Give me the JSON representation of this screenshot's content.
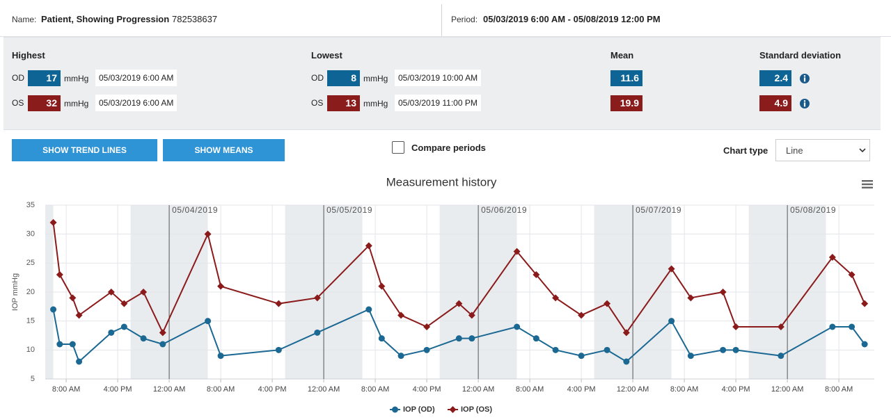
{
  "header": {
    "name_label": "Name:",
    "name": "Patient, Showing Progression",
    "patient_id": "782538637",
    "period_label": "Period:",
    "period": "05/03/2019 6:00 AM - 05/08/2019 12:00 PM"
  },
  "stats": {
    "columns": {
      "highest": "Highest",
      "lowest": "Lowest",
      "mean": "Mean",
      "sd": "Standard deviation"
    },
    "unit": "mmHg",
    "rows": [
      {
        "eye": "OD",
        "highest": 17,
        "highest_time": "05/03/2019 6:00 AM",
        "lowest": 8,
        "lowest_time": "05/03/2019 10:00 AM",
        "mean": 11.6,
        "sd": 2.4
      },
      {
        "eye": "OS",
        "highest": 32,
        "highest_time": "05/03/2019 6:00 AM",
        "lowest": 13,
        "lowest_time": "05/03/2019 11:00 PM",
        "mean": 19.9,
        "sd": 4.9
      }
    ]
  },
  "controls": {
    "trend_button": "SHOW TREND LINES",
    "means_button": "SHOW MEANS",
    "compare_label": "Compare periods",
    "chart_type_label": "Chart type",
    "chart_type": "Line"
  },
  "chart_data": {
    "type": "line",
    "title": "Measurement history",
    "y_label": "IOP mmHg",
    "x": [
      6,
      7,
      9,
      10,
      15,
      17,
      20,
      23,
      30,
      32,
      41,
      47,
      55,
      57,
      60,
      64,
      69,
      71,
      78,
      81,
      84,
      88,
      92,
      95,
      102,
      105,
      110,
      112,
      119,
      127,
      130,
      132
    ],
    "series": [
      {
        "name": "IOP (OD)",
        "color": "#1b6893",
        "marker": "circle",
        "values": [
          17,
          11,
          11,
          8,
          13,
          14,
          12,
          11,
          15,
          9,
          10,
          13,
          17,
          12,
          9,
          10,
          12,
          12,
          14,
          12,
          10,
          9,
          10,
          8,
          15,
          9,
          10,
          10,
          9,
          14,
          14,
          11
        ]
      },
      {
        "name": "IOP (OS)",
        "color": "#8b1a1a",
        "marker": "diamond",
        "values": [
          32,
          23,
          19,
          16,
          20,
          18,
          20,
          13,
          30,
          21,
          18,
          19,
          28,
          21,
          16,
          14,
          18,
          16,
          27,
          23,
          19,
          16,
          18,
          13,
          24,
          19,
          20,
          14,
          14,
          26,
          23,
          18
        ]
      }
    ],
    "xlim": [
      4.75,
      133.5
    ],
    "xticks": [
      {
        "value": 8,
        "label": "8:00 AM"
      },
      {
        "value": 16,
        "label": "4:00 PM"
      },
      {
        "value": 24,
        "label": "12:00 AM"
      },
      {
        "value": 32,
        "label": "8:00 AM"
      },
      {
        "value": 40,
        "label": "4:00 PM"
      },
      {
        "value": 48,
        "label": "12:00 AM"
      },
      {
        "value": 56,
        "label": "8:00 AM"
      },
      {
        "value": 64,
        "label": "4:00 PM"
      },
      {
        "value": 72,
        "label": "12:00 AM"
      },
      {
        "value": 80,
        "label": "8:00 AM"
      },
      {
        "value": 88,
        "label": "4:00 PM"
      },
      {
        "value": 96,
        "label": "12:00 AM"
      },
      {
        "value": 104,
        "label": "8:00 AM"
      },
      {
        "value": 112,
        "label": "4:00 PM"
      },
      {
        "value": 120,
        "label": "12:00 AM"
      },
      {
        "value": 128,
        "label": "8:00 AM"
      }
    ],
    "date_lines": [
      {
        "value": 24,
        "label": "05/04/2019"
      },
      {
        "value": 48,
        "label": "05/05/2019"
      },
      {
        "value": 72,
        "label": "05/06/2019"
      },
      {
        "value": 96,
        "label": "05/07/2019"
      },
      {
        "value": 120,
        "label": "05/08/2019"
      }
    ],
    "ylim": [
      5,
      35
    ],
    "yticks": [
      5,
      10,
      15,
      20,
      25,
      30,
      35
    ],
    "grid": true
  }
}
